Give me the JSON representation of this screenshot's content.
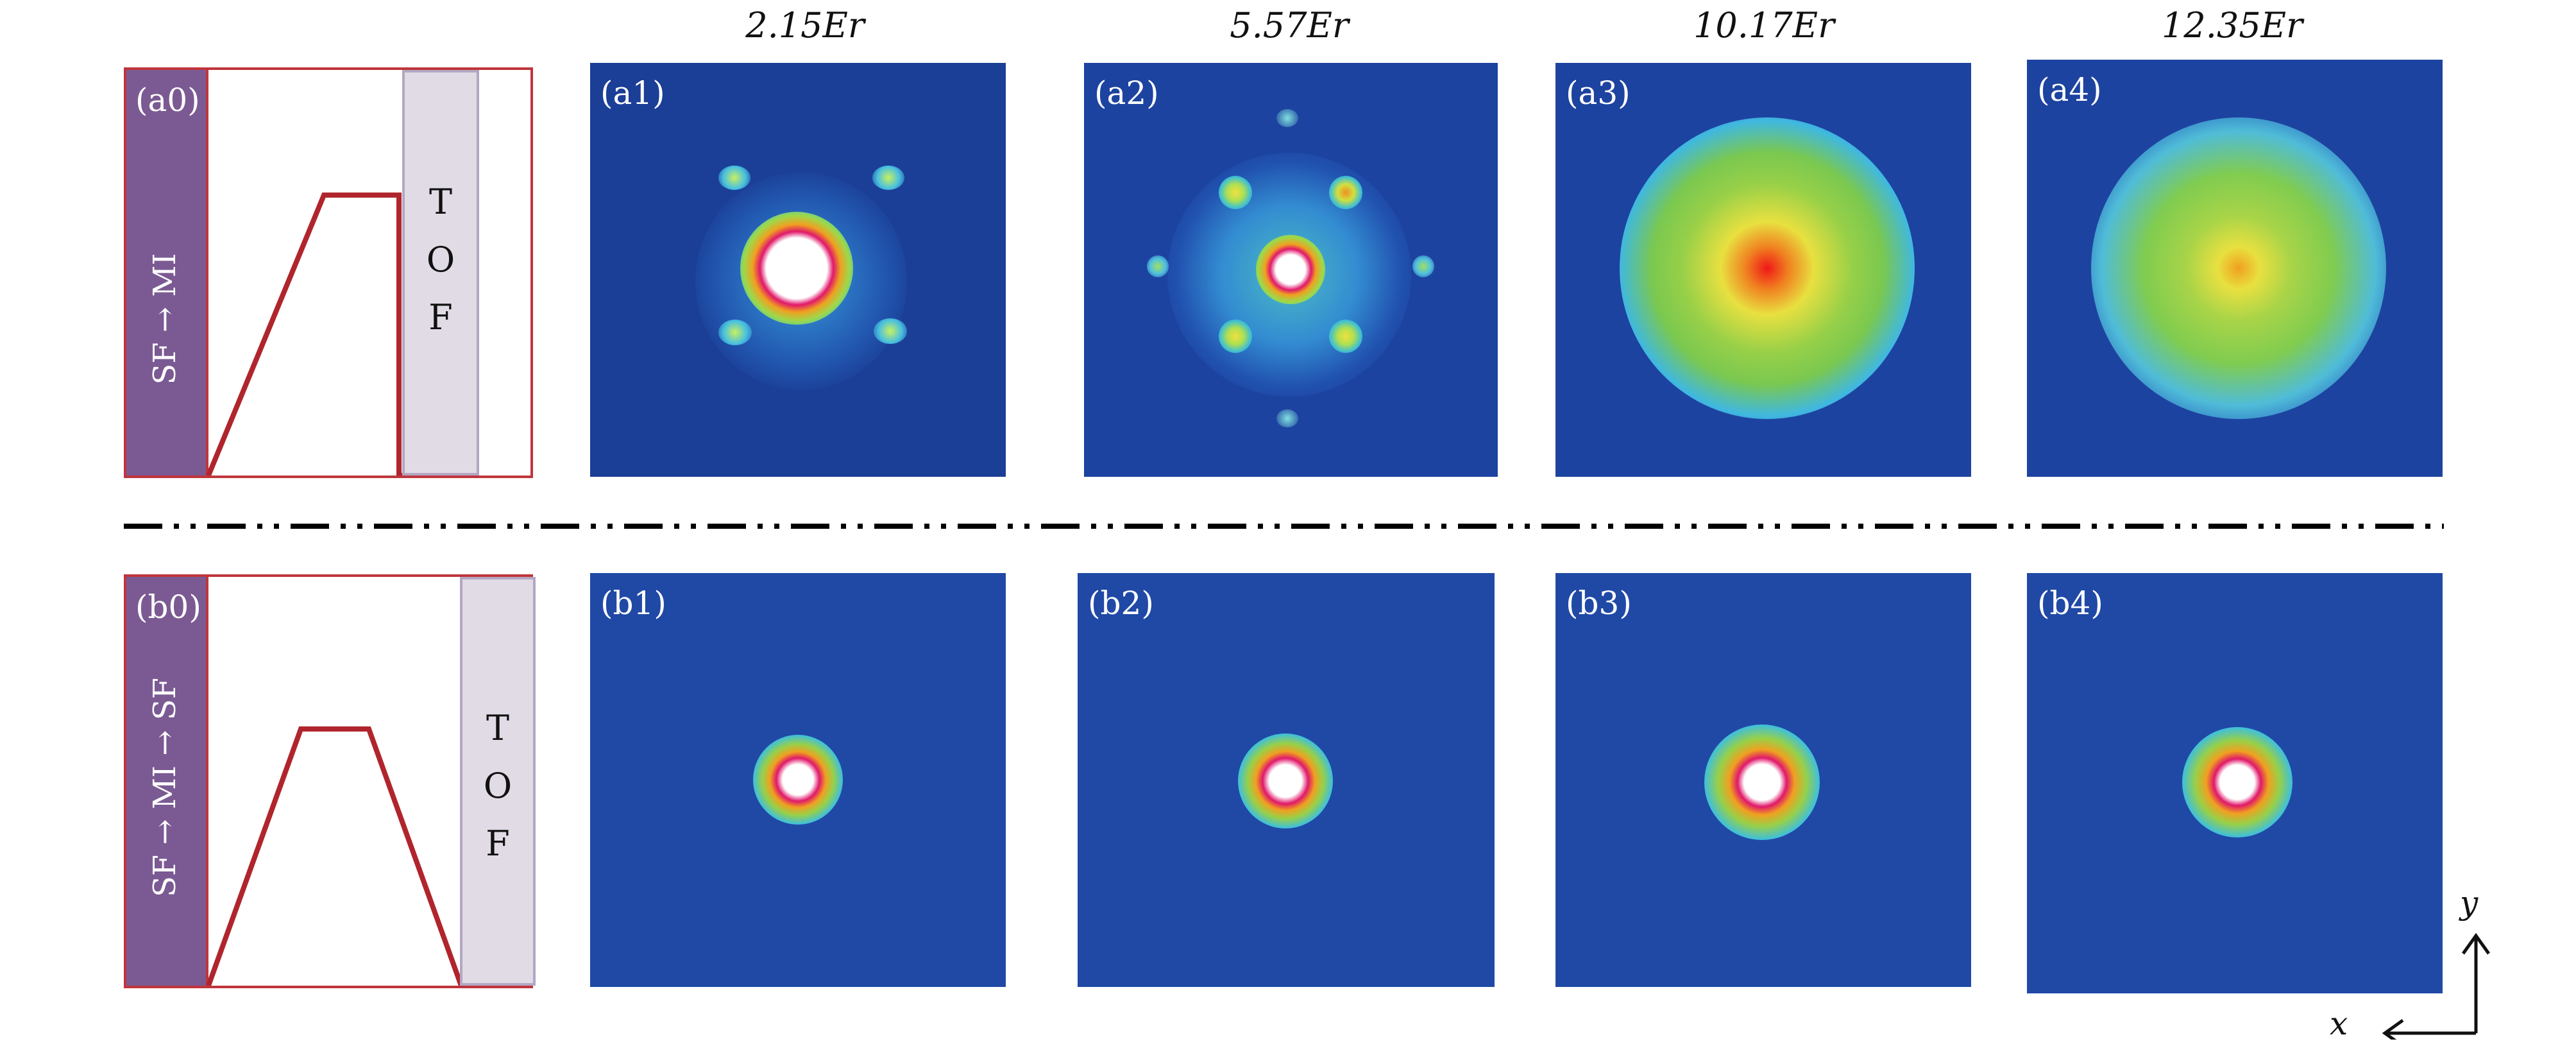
{
  "column_titles": [
    "2.15Er",
    "5.57Er",
    "10.17Er",
    "12.35Er"
  ],
  "row_a": {
    "scheme_label": "(a0)",
    "sequence": "SF → MI",
    "tof_letters": [
      "T",
      "O",
      "F"
    ],
    "panels": [
      "(a1)",
      "(a2)",
      "(a3)",
      "(a4)"
    ]
  },
  "row_b": {
    "scheme_label": "(b0)",
    "sequence": "SF → MI → SF",
    "tof_letters": [
      "T",
      "O",
      "F"
    ],
    "panels": [
      "(b1)",
      "(b2)",
      "(b3)",
      "(b4)"
    ]
  },
  "axes": {
    "x": "x",
    "y": "y"
  },
  "colors": {
    "frame": "#c0353c",
    "phase_fill": "#7b5a93",
    "tof_fill": "#e1dbe6",
    "image_background": "#1e47a4"
  }
}
